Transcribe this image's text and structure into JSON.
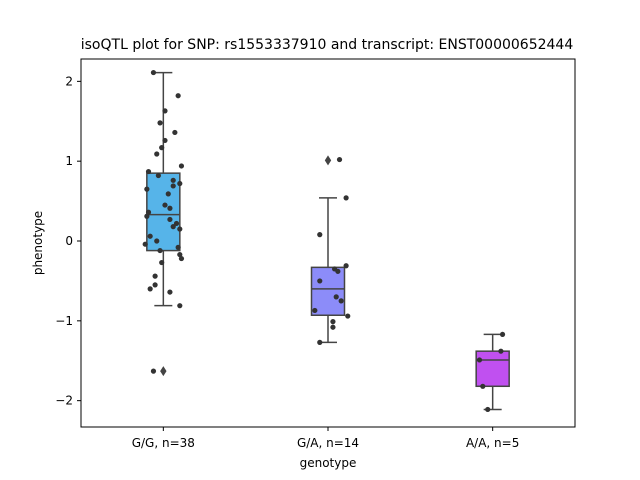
{
  "chart_data": {
    "type": "box",
    "title": "isoQTL plot for SNP: rs1553337910 and transcript: ENST00000652444",
    "xlabel": "genotype",
    "ylabel": "phenotype",
    "ylim": [
      -2.33,
      2.28
    ],
    "yticks": [
      -2,
      -1,
      0,
      1,
      2
    ],
    "yticklabels": [
      "−2",
      "−1",
      "0",
      "1",
      "2"
    ],
    "grid": false,
    "categories": [
      "G/G, n=38",
      "G/A, n=14",
      "A/A, n=5"
    ],
    "colors": [
      "#56b4e9",
      "#8c8cf9",
      "#c050f0"
    ],
    "boxes": [
      {
        "q1": -0.12,
        "median": 0.33,
        "q3": 0.85,
        "whisker_low": -0.81,
        "whisker_high": 2.11,
        "outliers": [
          -1.63
        ]
      },
      {
        "q1": -0.93,
        "median": -0.6,
        "q3": -0.33,
        "whisker_low": -1.27,
        "whisker_high": 0.54,
        "outliers": [
          1.01
        ]
      },
      {
        "q1": -1.82,
        "median": -1.49,
        "q3": -1.38,
        "whisker_low": -2.11,
        "whisker_high": -1.17,
        "outliers": []
      }
    ],
    "points": [
      [
        [
          -0.06,
          2.11
        ],
        [
          0.09,
          1.82
        ],
        [
          0.01,
          1.63
        ],
        [
          -0.02,
          1.48
        ],
        [
          0.07,
          1.36
        ],
        [
          0.01,
          1.26
        ],
        [
          -0.01,
          1.17
        ],
        [
          -0.04,
          1.09
        ],
        [
          0.11,
          0.94
        ],
        [
          -0.09,
          0.87
        ],
        [
          -0.03,
          0.82
        ],
        [
          0.06,
          0.76
        ],
        [
          0.1,
          0.72
        ],
        [
          0.06,
          0.69
        ],
        [
          -0.1,
          0.65
        ],
        [
          0.03,
          0.59
        ],
        [
          0.01,
          0.45
        ],
        [
          0.04,
          0.41
        ],
        [
          -0.09,
          0.36
        ],
        [
          -0.1,
          0.31
        ],
        [
          0.04,
          0.27
        ],
        [
          0.08,
          0.22
        ],
        [
          0.06,
          0.18
        ],
        [
          0.1,
          0.15
        ],
        [
          -0.08,
          0.06
        ],
        [
          -0.04,
          0.0
        ],
        [
          -0.11,
          -0.04
        ],
        [
          0.09,
          -0.08
        ],
        [
          -0.02,
          -0.12
        ],
        [
          0.1,
          -0.17
        ],
        [
          0.11,
          -0.22
        ],
        [
          -0.01,
          -0.27
        ],
        [
          -0.05,
          -0.44
        ],
        [
          -0.05,
          -0.55
        ],
        [
          -0.08,
          -0.6
        ],
        [
          0.04,
          -0.64
        ],
        [
          0.1,
          -0.81
        ],
        [
          -0.06,
          -1.63
        ]
      ],
      [
        [
          0.07,
          1.02
        ],
        [
          0.11,
          0.54
        ],
        [
          -0.05,
          0.08
        ],
        [
          0.11,
          -0.31
        ],
        [
          0.04,
          -0.35
        ],
        [
          0.06,
          -0.38
        ],
        [
          -0.05,
          -0.5
        ],
        [
          0.05,
          -0.7
        ],
        [
          0.08,
          -0.75
        ],
        [
          -0.08,
          -0.87
        ],
        [
          0.12,
          -0.94
        ],
        [
          0.03,
          -1.01
        ],
        [
          0.03,
          -1.08
        ],
        [
          -0.05,
          -1.27
        ]
      ],
      [
        [
          0.06,
          -1.17
        ],
        [
          0.05,
          -1.38
        ],
        [
          -0.08,
          -1.49
        ],
        [
          -0.06,
          -1.82
        ],
        [
          -0.03,
          -2.11
        ]
      ]
    ]
  }
}
